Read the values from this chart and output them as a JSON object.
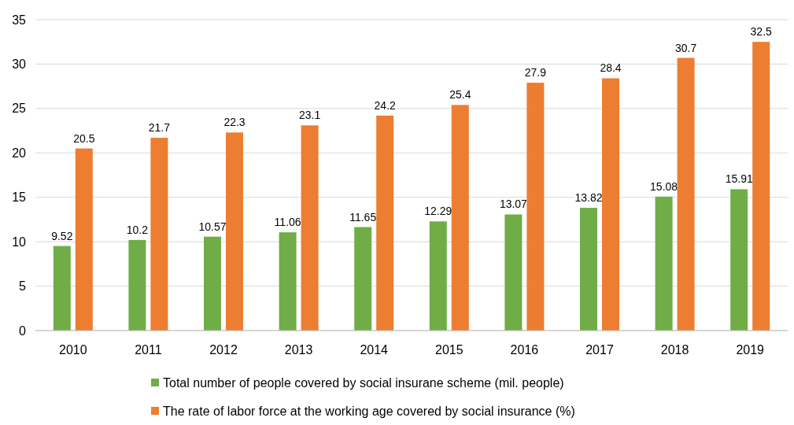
{
  "chart_data": {
    "type": "bar",
    "categories": [
      "2010",
      "2011",
      "2012",
      "2013",
      "2014",
      "2015",
      "2016",
      "2017",
      "2018",
      "2019"
    ],
    "series": [
      {
        "name": "Total number of people covered by social insurane scheme (mil. people)",
        "color": "#70ad47",
        "values": [
          9.52,
          10.2,
          10.57,
          11.06,
          11.65,
          12.29,
          13.07,
          13.82,
          15.08,
          15.91
        ]
      },
      {
        "name": "The rate of labor force at the working age covered by social insurance (%)",
        "color": "#ed7d31",
        "values": [
          20.5,
          21.7,
          22.3,
          23.1,
          24.2,
          25.4,
          27.9,
          28.4,
          30.7,
          32.5
        ]
      }
    ],
    "ylim": [
      0,
      35
    ],
    "yticks": [
      0,
      5,
      10,
      15,
      20,
      25,
      30,
      35
    ],
    "grid": "y",
    "legend": "bottom",
    "data_labels": true
  }
}
